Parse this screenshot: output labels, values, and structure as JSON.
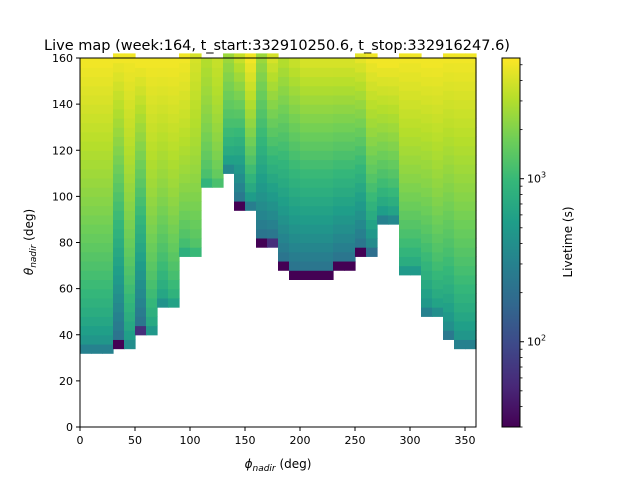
{
  "chart_data": {
    "type": "heatmap",
    "title": "Live map (week:164, t_start:332910250.6, t_stop:332916247.6)",
    "xlabel": {
      "symbol": "ϕ",
      "sub": "nadir",
      "unit": " (deg)"
    },
    "ylabel": {
      "symbol": "θ",
      "sub": "nadir",
      "unit": " (deg)"
    },
    "xlim": [
      0,
      360
    ],
    "ylim": [
      0,
      160
    ],
    "x_ticks": [
      0,
      50,
      100,
      150,
      200,
      250,
      300,
      350
    ],
    "y_ticks": [
      0,
      20,
      40,
      60,
      80,
      100,
      120,
      140,
      160
    ],
    "x_tick_labels": [
      "0",
      "50",
      "100",
      "150",
      "200",
      "250",
      "300",
      "350"
    ],
    "y_tick_labels": [
      "0",
      "20",
      "40",
      "60",
      "80",
      "100",
      "120",
      "140",
      "160"
    ],
    "colorbar": {
      "label": "Livetime (s)",
      "scale": "log",
      "range": [
        30,
        5500
      ],
      "colormap": "viridis",
      "major_tick_labels": [
        "10",
        "10"
      ],
      "major_tick_exponents": [
        "2",
        "3"
      ],
      "major_tick_values": [
        100,
        1000
      ]
    },
    "phi_bin_width_deg": 10,
    "theta_bin_width_deg": 4,
    "columns": [
      {
        "phi_min": 0,
        "theta_min": 32,
        "l_bottom": 300,
        "l_top": 5000
      },
      {
        "phi_min": 10,
        "theta_min": 32,
        "l_bottom": 300,
        "l_top": 5000
      },
      {
        "phi_min": 20,
        "theta_min": 32,
        "l_bottom": 300,
        "l_top": 5000
      },
      {
        "phi_min": 30,
        "theta_min": 34,
        "l_bottom": 30,
        "l_top": 5000
      },
      {
        "phi_min": 40,
        "theta_min": 34,
        "l_bottom": 380,
        "l_top": 5000
      },
      {
        "phi_min": 50,
        "theta_min": 40,
        "l_bottom": 60,
        "l_top": 5000
      },
      {
        "phi_min": 60,
        "theta_min": 40,
        "l_bottom": 480,
        "l_top": 5000
      },
      {
        "phi_min": 70,
        "theta_min": 52,
        "l_bottom": 430,
        "l_top": 5000
      },
      {
        "phi_min": 80,
        "theta_min": 52,
        "l_bottom": 600,
        "l_top": 5000
      },
      {
        "phi_min": 90,
        "theta_min": 74,
        "l_bottom": 800,
        "l_top": 5000
      },
      {
        "phi_min": 100,
        "theta_min": 74,
        "l_bottom": 1000,
        "l_top": 4000
      },
      {
        "phi_min": 110,
        "theta_min": 104,
        "l_bottom": 900,
        "l_top": 3000
      },
      {
        "phi_min": 120,
        "theta_min": 104,
        "l_bottom": 1200,
        "l_top": 3500
      },
      {
        "phi_min": 130,
        "theta_min": 110,
        "l_bottom": 350,
        "l_top": 2500
      },
      {
        "phi_min": 140,
        "theta_min": 94,
        "l_bottom": 30,
        "l_top": 3500
      },
      {
        "phi_min": 150,
        "theta_min": 94,
        "l_bottom": 280,
        "l_top": 5000
      },
      {
        "phi_min": 160,
        "theta_min": 78,
        "l_bottom": 30,
        "l_top": 2500
      },
      {
        "phi_min": 170,
        "theta_min": 78,
        "l_bottom": 60,
        "l_top": 4000
      },
      {
        "phi_min": 180,
        "theta_min": 68,
        "l_bottom": 30,
        "l_top": 3000
      },
      {
        "phi_min": 190,
        "theta_min": 64,
        "l_bottom": 30,
        "l_top": 3500
      },
      {
        "phi_min": 200,
        "theta_min": 64,
        "l_bottom": 30,
        "l_top": 4000
      },
      {
        "phi_min": 210,
        "theta_min": 64,
        "l_bottom": 30,
        "l_top": 4000
      },
      {
        "phi_min": 220,
        "theta_min": 64,
        "l_bottom": 30,
        "l_top": 4000
      },
      {
        "phi_min": 230,
        "theta_min": 68,
        "l_bottom": 30,
        "l_top": 4000
      },
      {
        "phi_min": 240,
        "theta_min": 68,
        "l_bottom": 30,
        "l_top": 4000
      },
      {
        "phi_min": 250,
        "theta_min": 74,
        "l_bottom": 30,
        "l_top": 4500
      },
      {
        "phi_min": 260,
        "theta_min": 74,
        "l_bottom": 200,
        "l_top": 5000
      },
      {
        "phi_min": 270,
        "theta_min": 88,
        "l_bottom": 300,
        "l_top": 5000
      },
      {
        "phi_min": 280,
        "theta_min": 88,
        "l_bottom": 350,
        "l_top": 5000
      },
      {
        "phi_min": 290,
        "theta_min": 66,
        "l_bottom": 500,
        "l_top": 5000
      },
      {
        "phi_min": 300,
        "theta_min": 66,
        "l_bottom": 500,
        "l_top": 5000
      },
      {
        "phi_min": 310,
        "theta_min": 48,
        "l_bottom": 300,
        "l_top": 5000
      },
      {
        "phi_min": 320,
        "theta_min": 48,
        "l_bottom": 400,
        "l_top": 5000
      },
      {
        "phi_min": 330,
        "theta_min": 38,
        "l_bottom": 250,
        "l_top": 5000
      },
      {
        "phi_min": 340,
        "theta_min": 34,
        "l_bottom": 300,
        "l_top": 5000
      },
      {
        "phi_min": 350,
        "theta_min": 34,
        "l_bottom": 300,
        "l_top": 5000
      }
    ]
  }
}
